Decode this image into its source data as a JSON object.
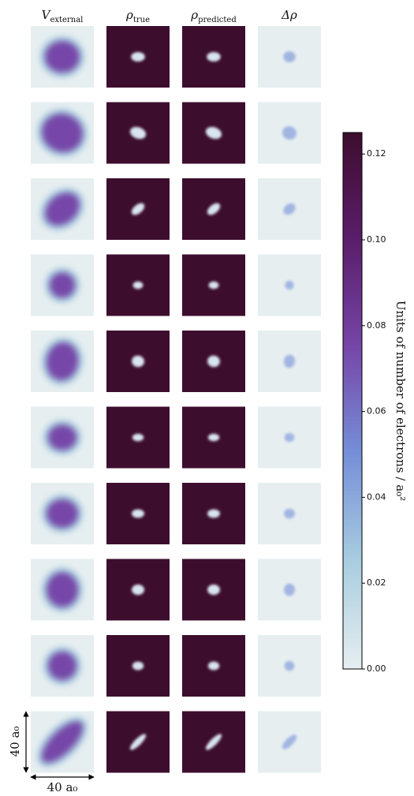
{
  "chart_data": {
    "type": "heatmap",
    "columns": [
      {
        "symbol": "V",
        "subscript": "external"
      },
      {
        "symbol": "ρ",
        "subscript": "true"
      },
      {
        "symbol": "ρ",
        "subscript": "predicted"
      },
      {
        "symbol": "Δρ",
        "subscript": null
      }
    ],
    "colorbar": {
      "label": "Units of number of electrons / a₀²",
      "ylim": [
        0,
        0.125
      ],
      "yticks": [
        {
          "value": 0,
          "label": "0.00"
        },
        {
          "value": 0.02,
          "label": "0.02"
        },
        {
          "value": 0.04,
          "label": "0.04"
        },
        {
          "value": 0.06,
          "label": "0.06"
        },
        {
          "value": 0.08,
          "label": "0.08"
        },
        {
          "value": 0.1,
          "label": "0.10"
        },
        {
          "value": 0.12,
          "label": "0.12"
        }
      ],
      "colormap": [
        "#e6eef0",
        "#a9cde0",
        "#7590d8",
        "#7646a8",
        "#5a1e6a",
        "#3d0d2e"
      ]
    },
    "scale_labels": {
      "height": "40 a₀",
      "width": "40 a₀"
    }
  }
}
